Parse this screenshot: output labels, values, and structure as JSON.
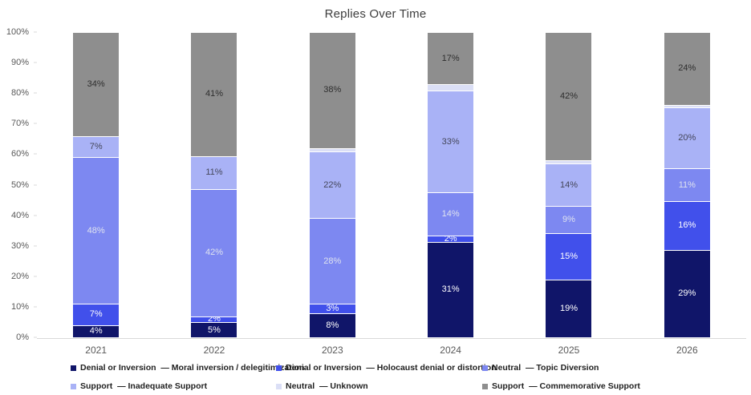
{
  "chart_data": {
    "type": "bar",
    "stacked": true,
    "title": "Replies Over Time",
    "categories": [
      "2021",
      "2022",
      "2023",
      "2024",
      "2025",
      "2026"
    ],
    "series": [
      {
        "name": "Denial or Inversion  — Moral inversion / delegitimization",
        "color": "#101569",
        "label_color": "#ffffff",
        "values": [
          4,
          5,
          8,
          31,
          19,
          29
        ],
        "labels": [
          "4%",
          "5%",
          "8%",
          "31%",
          "19%",
          "29%"
        ]
      },
      {
        "name": "Denial or Inversion  — Holocaust denial or distortion",
        "color": "#4150eb",
        "label_color": "#ffffff",
        "values": [
          7,
          2,
          3,
          2,
          15,
          16
        ],
        "labels": [
          "7%",
          "2%",
          "3%",
          "2%",
          "15%",
          "16%"
        ]
      },
      {
        "name": "Neutral  — Topic Diversion",
        "color": "#7d88f1",
        "label_color": "#dfe3f0",
        "values": [
          48,
          42,
          28,
          14,
          9,
          11
        ],
        "labels": [
          "48%",
          "42%",
          "28%",
          "14%",
          "9%",
          "11%"
        ]
      },
      {
        "name": "Support  — Inadequate Support",
        "color": "#a9b2f6",
        "label_color": "#44465a",
        "values": [
          7,
          11,
          22,
          33,
          14,
          20
        ],
        "labels": [
          "7%",
          "11%",
          "22%",
          "33%",
          "14%",
          "20%"
        ]
      },
      {
        "name": "Neutral  — Unknown",
        "color": "#dbdff6",
        "label_color": "#44465a",
        "values": [
          0,
          0,
          1,
          2,
          1,
          1
        ],
        "labels": [
          "",
          "",
          "",
          "",
          "",
          ""
        ]
      },
      {
        "name": "Support  — Commemorative Support",
        "color": "#8e8e8e",
        "label_color": "#2e2e2e",
        "values": [
          34,
          41,
          38,
          17,
          42,
          24
        ],
        "labels": [
          "34%",
          "41%",
          "38%",
          "17%",
          "42%",
          "24%"
        ]
      }
    ],
    "y_axis": {
      "tick_labels": [
        "0%",
        "10%",
        "20%",
        "30%",
        "40%",
        "50%",
        "60%",
        "70%",
        "80%",
        "90%",
        "100%"
      ],
      "tick_values": [
        0,
        10,
        20,
        30,
        40,
        50,
        60,
        70,
        80,
        90,
        100
      ]
    },
    "ylim": [
      0,
      100
    ],
    "grid": false,
    "legend_position": "bottom"
  }
}
